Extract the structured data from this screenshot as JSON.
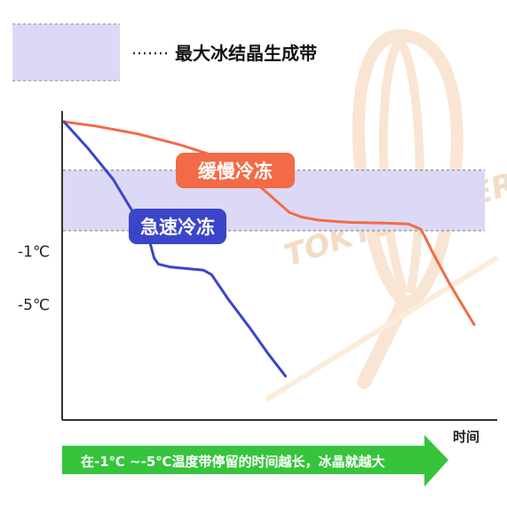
{
  "chart_data": {
    "type": "line",
    "title": "",
    "xlabel": "时间",
    "ylabel": "",
    "y_ticks": [
      "-1℃",
      "-5℃"
    ],
    "band": {
      "label": "最大冰结晶生成带",
      "y_from": "-1℃",
      "y_to": "-5℃",
      "fill": "#dcd9f6",
      "line_color": "#777777"
    },
    "series": [
      {
        "name": "缓慢冷冻",
        "color": "#f26b46",
        "x": [
          0,
          8,
          18,
          28,
          36,
          44,
          50,
          55,
          58,
          62,
          67,
          70,
          78,
          84,
          87,
          88,
          90,
          94,
          100
        ],
        "y": [
          2.2,
          1.9,
          1.4,
          0.7,
          0,
          -1.2,
          -2.6,
          -3.8,
          -4.1,
          -4.3,
          -4.4,
          -4.45,
          -4.5,
          -4.55,
          -4.9,
          -5.4,
          -6.5,
          -8.5,
          -11.2
        ]
      },
      {
        "name": "急速冷冻",
        "color": "#3a45c9",
        "x": [
          0,
          6,
          12,
          18,
          21,
          22,
          23,
          26,
          30,
          32,
          34,
          36,
          38,
          40,
          45,
          50,
          54
        ],
        "y": [
          2.2,
          0.4,
          -1.6,
          -4.3,
          -5.8,
          -6.8,
          -7.2,
          -7.4,
          -7.5,
          -7.55,
          -7.6,
          -7.9,
          -8.7,
          -9.5,
          -11.3,
          -13.2,
          -14.6
        ]
      }
    ],
    "xlim": [
      0,
      100
    ],
    "ylim": [
      -17.5,
      2.5
    ],
    "grid": false
  },
  "banner": {
    "text": "在-1℃ ~-5℃温度带停留的时间越长，冰晶就越大",
    "color": "#36c43c"
  },
  "watermark": {
    "text": "TOKYO BAKER"
  }
}
